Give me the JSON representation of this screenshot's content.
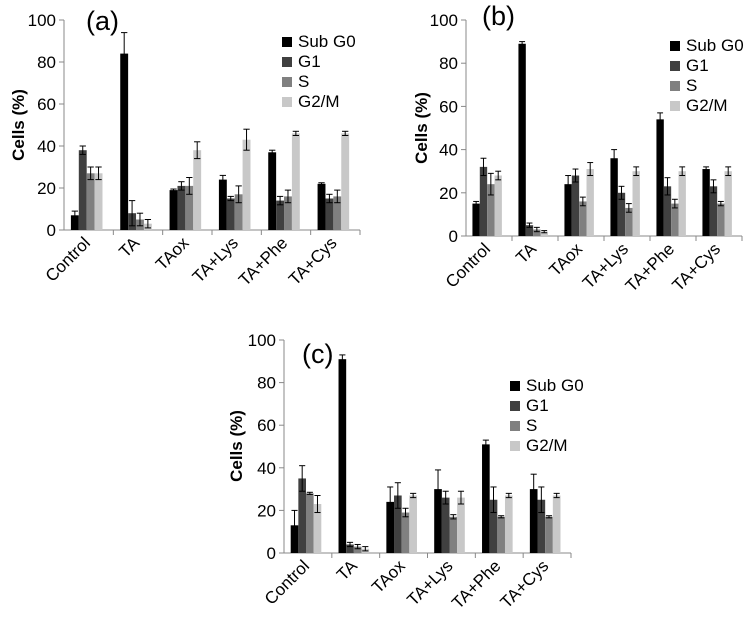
{
  "chart_data": [
    {
      "type": "bar",
      "panel_label": "(a)",
      "ylabel": "Cells (%)",
      "ylim": [
        0,
        100
      ],
      "yticks": [
        0,
        20,
        40,
        60,
        80,
        100
      ],
      "categories": [
        "Control",
        "TA",
        "TAox",
        "TA+Lys",
        "TA+Phe",
        "TA+Cys"
      ],
      "series": [
        {
          "name": "Sub G0",
          "color": "#000000",
          "values": [
            7,
            84,
            19,
            24,
            37,
            22
          ],
          "errors": [
            2,
            10,
            0.5,
            2,
            1,
            0.5
          ]
        },
        {
          "name": "G1",
          "color": "#404040",
          "values": [
            38,
            8,
            21,
            15,
            14,
            15
          ],
          "errors": [
            2,
            6,
            2,
            1,
            2,
            2
          ]
        },
        {
          "name": "S",
          "color": "#808080",
          "values": [
            27,
            5,
            21,
            17,
            16,
            16
          ],
          "errors": [
            3,
            3,
            4,
            4,
            3,
            3
          ]
        },
        {
          "name": "G2/M",
          "color": "#c8c8c8",
          "values": [
            27,
            3,
            38,
            43,
            46,
            46
          ],
          "errors": [
            3,
            2,
            4,
            5,
            1,
            1
          ]
        }
      ],
      "legend_position": "top-right"
    },
    {
      "type": "bar",
      "panel_label": "(b)",
      "ylabel": "Cells (%)",
      "ylim": [
        0,
        100
      ],
      "yticks": [
        0,
        20,
        40,
        60,
        80,
        100
      ],
      "categories": [
        "Control",
        "TA",
        "TAox",
        "TA+Lys",
        "TA+Phe",
        "TA+Cys"
      ],
      "series": [
        {
          "name": "Sub G0",
          "color": "#000000",
          "values": [
            15,
            89,
            24,
            36,
            54,
            31
          ],
          "errors": [
            1,
            1,
            4,
            4,
            3,
            1
          ]
        },
        {
          "name": "G1",
          "color": "#404040",
          "values": [
            32,
            5,
            28,
            20,
            23,
            23
          ],
          "errors": [
            4,
            1,
            3,
            3,
            4,
            3
          ]
        },
        {
          "name": "S",
          "color": "#808080",
          "values": [
            24,
            3,
            16,
            13,
            15,
            15
          ],
          "errors": [
            5,
            1,
            2,
            2,
            2,
            1
          ]
        },
        {
          "name": "G2/M",
          "color": "#c8c8c8",
          "values": [
            28,
            2,
            31,
            30,
            30,
            30
          ],
          "errors": [
            2,
            0.5,
            3,
            2,
            2,
            2
          ]
        }
      ],
      "legend_position": "top-right"
    },
    {
      "type": "bar",
      "panel_label": "(c)",
      "ylabel": "Cells (%)",
      "ylim": [
        0,
        100
      ],
      "yticks": [
        0,
        20,
        40,
        60,
        80,
        100
      ],
      "categories": [
        "Control",
        "TA",
        "TAox",
        "TA+Lys",
        "TA+Phe",
        "TA+Cys"
      ],
      "series": [
        {
          "name": "Sub G0",
          "color": "#000000",
          "values": [
            13,
            91,
            24,
            30,
            51,
            30
          ],
          "errors": [
            7,
            2,
            7,
            9,
            2,
            7
          ]
        },
        {
          "name": "G1",
          "color": "#404040",
          "values": [
            35,
            4,
            27,
            26,
            25,
            25
          ],
          "errors": [
            6,
            1,
            6,
            3,
            6,
            6
          ]
        },
        {
          "name": "S",
          "color": "#808080",
          "values": [
            28,
            3,
            19,
            17,
            17,
            17
          ],
          "errors": [
            0.5,
            1,
            2,
            1,
            0.5,
            0.5
          ]
        },
        {
          "name": "G2/M",
          "color": "#c8c8c8",
          "values": [
            23,
            2,
            27,
            26,
            27,
            27
          ],
          "errors": [
            4,
            1,
            1,
            3,
            1,
            1
          ]
        }
      ],
      "legend_position": "top-right"
    }
  ]
}
